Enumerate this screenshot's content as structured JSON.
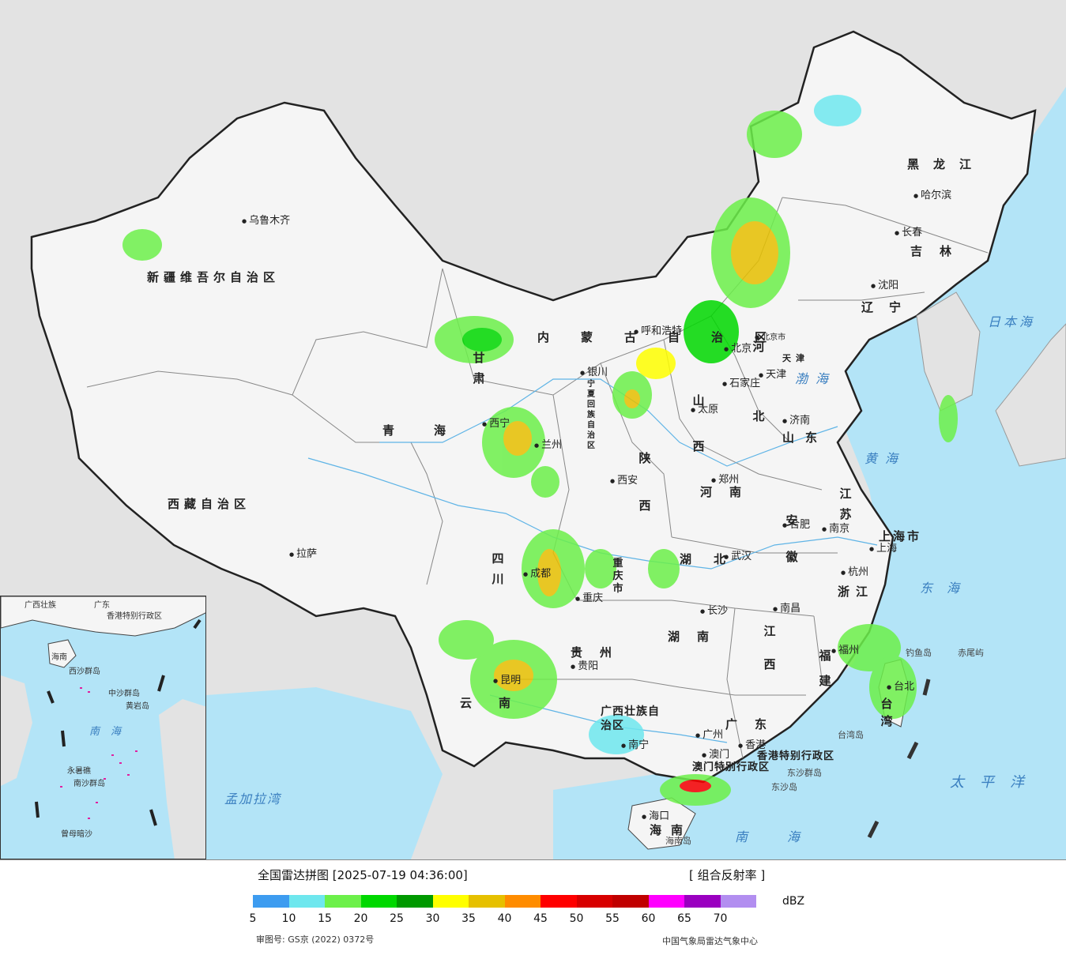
{
  "map": {
    "provinces": [
      {
        "id": "xinjiang",
        "name": "新疆维吾尔自治区"
      },
      {
        "id": "xizang",
        "name": "西藏自治区"
      },
      {
        "id": "qinghai",
        "name": "青海"
      },
      {
        "id": "gansu",
        "name": "甘肃"
      },
      {
        "id": "neimenggu",
        "name": "内蒙古自治区"
      },
      {
        "id": "ningxia",
        "name": "宁夏回族自治区"
      },
      {
        "id": "shaanxi",
        "name": "陕西"
      },
      {
        "id": "shanxi",
        "name": "山西"
      },
      {
        "id": "hebei",
        "name": "河北"
      },
      {
        "id": "beijing",
        "name": "北京市"
      },
      {
        "id": "tianjin",
        "name": "天津"
      },
      {
        "id": "shandong",
        "name": "山东"
      },
      {
        "id": "henan",
        "name": "河南"
      },
      {
        "id": "heilongjiang",
        "name": "黑龙江"
      },
      {
        "id": "jilin",
        "name": "吉林"
      },
      {
        "id": "liaoning",
        "name": "辽宁"
      },
      {
        "id": "jiangsu",
        "name": "江苏"
      },
      {
        "id": "anhui",
        "name": "安徽"
      },
      {
        "id": "shanghai",
        "name": "上海市"
      },
      {
        "id": "zhejiang",
        "name": "浙江"
      },
      {
        "id": "hubei",
        "name": "湖北"
      },
      {
        "id": "sichuan",
        "name": "四川"
      },
      {
        "id": "chongqing",
        "name": "重庆市"
      },
      {
        "id": "guizhou",
        "name": "贵州"
      },
      {
        "id": "hunan",
        "name": "湖南"
      },
      {
        "id": "jiangxi",
        "name": "江西"
      },
      {
        "id": "fujian",
        "name": "福建"
      },
      {
        "id": "taiwan",
        "name": "台湾"
      },
      {
        "id": "yunnan",
        "name": "云南"
      },
      {
        "id": "guangxi",
        "name": "广西壮族自治区"
      },
      {
        "id": "guangdong",
        "name": "广东"
      },
      {
        "id": "hainan",
        "name": "海南"
      },
      {
        "id": "hongkong",
        "name": "香港特别行政区"
      },
      {
        "id": "macau",
        "name": "澳门特别行政区"
      }
    ],
    "cities": [
      {
        "id": "urumqi",
        "name": "乌鲁木齐"
      },
      {
        "id": "lhasa",
        "name": "拉萨"
      },
      {
        "id": "xining",
        "name": "西宁"
      },
      {
        "id": "lanzhou",
        "name": "兰州"
      },
      {
        "id": "yinchuan",
        "name": "银川"
      },
      {
        "id": "hohhot",
        "name": "呼和浩特"
      },
      {
        "id": "beijing",
        "name": "北京"
      },
      {
        "id": "tianjin",
        "name": "天津"
      },
      {
        "id": "shijiazhuang",
        "name": "石家庄"
      },
      {
        "id": "taiyuan",
        "name": "太原"
      },
      {
        "id": "jinan",
        "name": "济南"
      },
      {
        "id": "zhengzhou",
        "name": "郑州"
      },
      {
        "id": "xian",
        "name": "西安"
      },
      {
        "id": "harbin",
        "name": "哈尔滨"
      },
      {
        "id": "changchun",
        "name": "长春"
      },
      {
        "id": "shenyang",
        "name": "沈阳"
      },
      {
        "id": "nanjing",
        "name": "南京"
      },
      {
        "id": "hefei",
        "name": "合肥"
      },
      {
        "id": "shanghai",
        "name": "上海"
      },
      {
        "id": "hangzhou",
        "name": "杭州"
      },
      {
        "id": "wuhan",
        "name": "武汉"
      },
      {
        "id": "chengdu",
        "name": "成都"
      },
      {
        "id": "chongqing",
        "name": "重庆"
      },
      {
        "id": "guiyang",
        "name": "贵阳"
      },
      {
        "id": "changsha",
        "name": "长沙"
      },
      {
        "id": "nanchang",
        "name": "南昌"
      },
      {
        "id": "fuzhou",
        "name": "福州"
      },
      {
        "id": "taibei",
        "name": "台北"
      },
      {
        "id": "kunming",
        "name": "昆明"
      },
      {
        "id": "nanning",
        "name": "南宁"
      },
      {
        "id": "guangzhou",
        "name": "广州"
      },
      {
        "id": "hongkong",
        "name": "香港"
      },
      {
        "id": "macau",
        "name": "澳门"
      },
      {
        "id": "haikou",
        "name": "海口"
      }
    ],
    "seas": [
      {
        "id": "bohai",
        "name": "渤海"
      },
      {
        "id": "huanghai",
        "name": "黄海"
      },
      {
        "id": "donghai",
        "name": "东海"
      },
      {
        "id": "nanhai",
        "name": "南海"
      },
      {
        "id": "taipingyang",
        "name": "太平洋"
      },
      {
        "id": "ribenhai",
        "name": "日本海"
      },
      {
        "id": "mengjialawan",
        "name": "孟加拉湾"
      }
    ],
    "islands": [
      {
        "id": "diaoyudao",
        "name": "钓鱼岛"
      },
      {
        "id": "chiweiyu",
        "name": "赤尾屿"
      },
      {
        "id": "taiwandao",
        "name": "台湾岛"
      },
      {
        "id": "hainandao",
        "name": "海南岛"
      },
      {
        "id": "dongshaqundao",
        "name": "东沙群岛"
      },
      {
        "id": "dongshadao",
        "name": "东沙岛"
      }
    ],
    "inset": {
      "labels": [
        {
          "id": "guangxi",
          "name": "广西壮族"
        },
        {
          "id": "guangdong",
          "name": "广东"
        },
        {
          "id": "hongkong",
          "name": "香港特别行政区"
        },
        {
          "id": "hainan",
          "name": "海南"
        },
        {
          "id": "xisha",
          "name": "西沙群岛"
        },
        {
          "id": "zhongsha",
          "name": "中沙群岛"
        },
        {
          "id": "huangyan",
          "name": "黄岩岛"
        },
        {
          "id": "nanhai",
          "name": "南海"
        },
        {
          "id": "yongshu",
          "name": "永暑礁"
        },
        {
          "id": "nansha",
          "name": "南沙群岛"
        },
        {
          "id": "zengmu",
          "name": "曾母暗沙"
        }
      ]
    }
  },
  "legend": {
    "title": "全国雷达拼图 [2025-07-19 04:36:00]",
    "product": "[ 组合反射率 ]",
    "unit": "dBZ",
    "colors": [
      "#3d9cf0",
      "#6ee7ee",
      "#6cf04a",
      "#00d800",
      "#009900",
      "#ffff00",
      "#e6c000",
      "#ff8c00",
      "#ff0000",
      "#d80000",
      "#c00000",
      "#ff00ff",
      "#9a00c0",
      "#b28ef0"
    ],
    "ticks": [
      "5",
      "10",
      "15",
      "20",
      "25",
      "30",
      "35",
      "40",
      "45",
      "50",
      "55",
      "60",
      "65",
      "70"
    ],
    "approval": "审图号: GS京 (2022) 0372号",
    "credit": "中国气象局雷达气象中心"
  }
}
